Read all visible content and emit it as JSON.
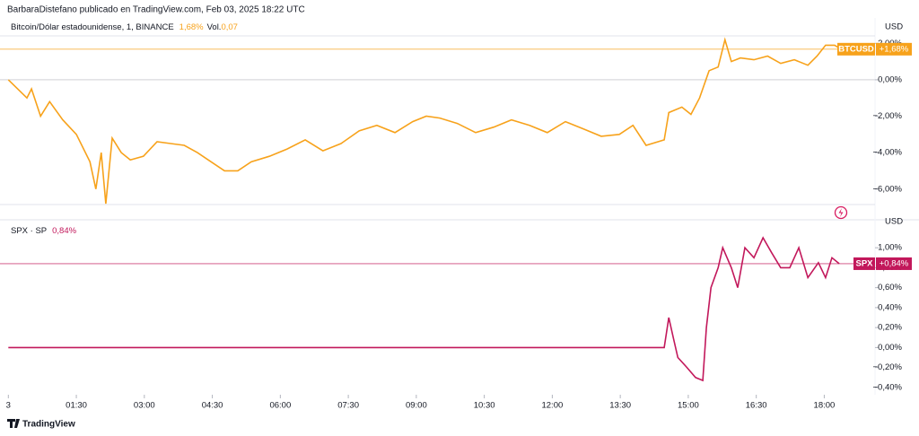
{
  "header": {
    "text": "BarbaraDistefano publicado en TradingView.com, Feb 03, 2025 18:22 UTC"
  },
  "footer": {
    "brand": "TradingView"
  },
  "chart_data": [
    {
      "type": "line",
      "title": "Bitcoin/Dólar estadounidense, 1, BINANCE",
      "axis_unit": "USD",
      "last_change": {
        "value": 1.68,
        "legend_label": "1,68%",
        "badge_label": "+1,68%"
      },
      "volume_prefix": "Vol.",
      "volume": {
        "value": 0.07,
        "label": "0,07"
      },
      "xlim": [
        0,
        19.12
      ],
      "ylim": [
        -6.85,
        2.41
      ],
      "yticks": [
        {
          "value": 2,
          "label": "2,00%"
        },
        {
          "value": 0,
          "label": "0,00%"
        },
        {
          "value": -2,
          "label": "−2,00%"
        },
        {
          "value": -4,
          "label": "−4,00%"
        },
        {
          "value": -6,
          "label": "−6,00%"
        }
      ],
      "x": [
        0,
        0.41,
        0.51,
        0.71,
        0.91,
        1.2,
        1.5,
        1.8,
        1.93,
        2.05,
        2.15,
        2.29,
        2.49,
        2.69,
        2.98,
        3.28,
        3.58,
        3.88,
        4.17,
        4.47,
        4.77,
        5.06,
        5.36,
        5.76,
        6.15,
        6.55,
        6.94,
        7.34,
        7.74,
        8.13,
        8.53,
        8.92,
        9.22,
        9.52,
        9.91,
        10.31,
        10.71,
        11.1,
        11.5,
        11.89,
        12.29,
        12.69,
        13.08,
        13.48,
        13.78,
        14.07,
        14.47,
        14.57,
        14.86,
        15.06,
        15.25,
        15.46,
        15.66,
        15.81,
        15.95,
        16.15,
        16.45,
        16.75,
        17.04,
        17.34,
        17.64,
        17.84,
        18.03,
        18.23,
        18.37
      ],
      "series": [
        {
          "name": "BTCUSD",
          "color": "#f7a21b",
          "values": [
            0,
            -1,
            -0.5,
            -2,
            -1.2,
            -2.2,
            -3,
            -4.5,
            -6,
            -4,
            -6.8,
            -3.2,
            -4,
            -4.4,
            -4.2,
            -3.4,
            -3.5,
            -3.6,
            -4,
            -4.5,
            -5,
            -5,
            -4.5,
            -4.2,
            -3.8,
            -3.3,
            -3.9,
            -3.5,
            -2.8,
            -2.5,
            -2.9,
            -2.3,
            -2,
            -2.1,
            -2.4,
            -2.9,
            -2.6,
            -2.2,
            -2.5,
            -2.9,
            -2.3,
            -2.7,
            -3.1,
            -3,
            -2.5,
            -3.6,
            -3.3,
            -1.8,
            -1.5,
            -1.9,
            -1,
            0.5,
            0.7,
            2.2,
            1,
            1.2,
            1.1,
            1.3,
            0.9,
            1.1,
            0.8,
            1.3,
            1.9,
            1.9,
            1.68
          ]
        }
      ]
    },
    {
      "type": "line",
      "title": "SPX · SP",
      "axis_unit": "USD",
      "last_change": {
        "value": 0.84,
        "legend_label": "0,84%",
        "badge_label": "+0,84%"
      },
      "xlim": [
        0,
        19.12
      ],
      "ylim": [
        -0.41,
        1.28
      ],
      "xticks": [
        {
          "value": 0,
          "label": "3"
        },
        {
          "value": 1.5,
          "label": "01:30"
        },
        {
          "value": 3,
          "label": "03:00"
        },
        {
          "value": 4.5,
          "label": "04:30"
        },
        {
          "value": 6,
          "label": "06:00"
        },
        {
          "value": 7.5,
          "label": "07:30"
        },
        {
          "value": 9,
          "label": "09:00"
        },
        {
          "value": 10.5,
          "label": "10:30"
        },
        {
          "value": 12,
          "label": "12:00"
        },
        {
          "value": 13.5,
          "label": "13:30"
        },
        {
          "value": 15,
          "label": "15:00"
        },
        {
          "value": 16.5,
          "label": "16:30"
        },
        {
          "value": 18,
          "label": "18:00"
        }
      ],
      "yticks": [
        {
          "value": 1,
          "label": "1,00%"
        },
        {
          "value": 0.8,
          "label": "0,80%"
        },
        {
          "value": 0.6,
          "label": "0,60%"
        },
        {
          "value": 0.4,
          "label": "0,40%"
        },
        {
          "value": 0.2,
          "label": "0,20%"
        },
        {
          "value": 0,
          "label": "0,00%"
        },
        {
          "value": -0.2,
          "label": "−0,20%"
        },
        {
          "value": -0.4,
          "label": "−0,40%"
        }
      ],
      "x": [
        0,
        14.47,
        14.57,
        14.67,
        14.77,
        14.97,
        15.16,
        15.32,
        15.4,
        15.5,
        15.66,
        15.76,
        15.95,
        16.09,
        16.25,
        16.45,
        16.65,
        16.84,
        17.04,
        17.24,
        17.44,
        17.64,
        17.87,
        18.03,
        18.17,
        18.33
      ],
      "series": [
        {
          "name": "SPX",
          "color": "#c2185b",
          "values": [
            0,
            0,
            0.3,
            0.1,
            -0.1,
            -0.2,
            -0.3,
            -0.33,
            0.2,
            0.6,
            0.8,
            1,
            0.8,
            0.6,
            1,
            0.9,
            1.1,
            0.95,
            0.8,
            0.8,
            1,
            0.7,
            0.85,
            0.7,
            0.9,
            0.84
          ]
        }
      ]
    }
  ]
}
